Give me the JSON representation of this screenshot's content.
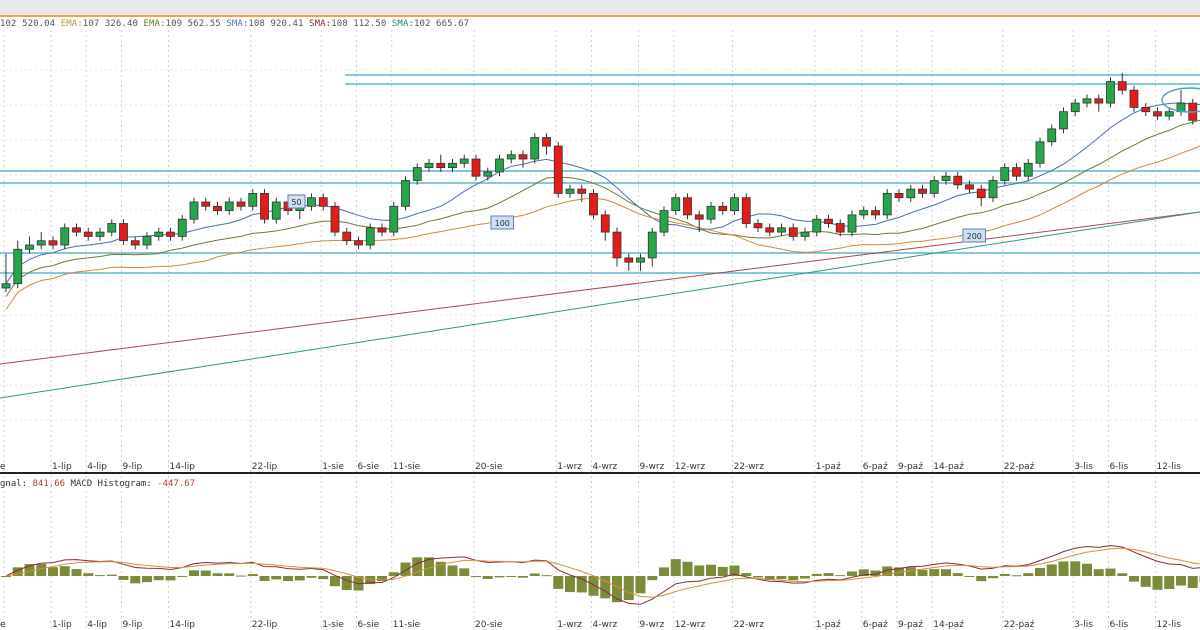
{
  "legend": {
    "items": [
      {
        "label": "",
        "value": "102 520.04",
        "color": "#555555"
      },
      {
        "label": "EMA:",
        "value": "107 326.40",
        "color": "#d08a3a"
      },
      {
        "label": "EMA:",
        "value": "109 562.55",
        "color": "#6b7d2e"
      },
      {
        "label": "SMA:",
        "value": "108 920.41",
        "color": "#4a6fb5"
      },
      {
        "label": "SMA:",
        "value": "108 112.50",
        "color": "#8a2a2a"
      },
      {
        "label": "SMA:",
        "value": "102 665.67",
        "color": "#1f8a6a"
      }
    ]
  },
  "macd_legend": {
    "signal_label": "gnal:",
    "signal_value": "841.66",
    "hist_label": "MACD Histogram:",
    "hist_value": "-447.67"
  },
  "ma_labels": [
    "50",
    "100",
    "200"
  ],
  "chart_data": {
    "type": "candlestick",
    "x_tick_labels": [
      "e",
      "1-lip",
      "4-lip",
      "9-lip",
      "14-lip",
      "22-lip",
      "1-sie",
      "6-sie",
      "11-sie",
      "20-sie",
      "1-wrz",
      "4-wrz",
      "9-wrz",
      "12-wrz",
      "22-wrz",
      "1-paź",
      "6-paź",
      "9-paź",
      "14-paź",
      "22-paź",
      "3-lis",
      "6-lis",
      "12-lis"
    ],
    "ohlc": [
      [
        100,
        101,
        108,
        99
      ],
      [
        101,
        109,
        111,
        100
      ],
      [
        109,
        110,
        112,
        108
      ],
      [
        110,
        111,
        113,
        109
      ],
      [
        111,
        110,
        112,
        109
      ],
      [
        110,
        114,
        115,
        109
      ],
      [
        114,
        113,
        115,
        112
      ],
      [
        113,
        112,
        114,
        111
      ],
      [
        112,
        113,
        114,
        111
      ],
      [
        113,
        115,
        116,
        112
      ],
      [
        115,
        111,
        116,
        110
      ],
      [
        111,
        110,
        112,
        109
      ],
      [
        110,
        112,
        113,
        109
      ],
      [
        112,
        113,
        114,
        111
      ],
      [
        113,
        112,
        114,
        111
      ],
      [
        112,
        116,
        117,
        111
      ],
      [
        116,
        120,
        121,
        115
      ],
      [
        120,
        119,
        121,
        118
      ],
      [
        119,
        118,
        120,
        117
      ],
      [
        118,
        120,
        121,
        117
      ],
      [
        120,
        119,
        121,
        118
      ],
      [
        119,
        122,
        123,
        118
      ],
      [
        122,
        116,
        123,
        115
      ],
      [
        116,
        120,
        121,
        115
      ],
      [
        120,
        118,
        121,
        117
      ],
      [
        118,
        119,
        120,
        116
      ],
      [
        119,
        121,
        122,
        118
      ],
      [
        121,
        119,
        122,
        118
      ],
      [
        119,
        113,
        120,
        112
      ],
      [
        113,
        111,
        114,
        110
      ],
      [
        111,
        110,
        112,
        109
      ],
      [
        110,
        114,
        115,
        109
      ],
      [
        114,
        113,
        115,
        112
      ],
      [
        113,
        119,
        120,
        112
      ],
      [
        119,
        125,
        126,
        118
      ],
      [
        125,
        128,
        129,
        124
      ],
      [
        128,
        129,
        130,
        127
      ],
      [
        129,
        128,
        131,
        127
      ],
      [
        128,
        129,
        130,
        127
      ],
      [
        129,
        130,
        131,
        128
      ],
      [
        130,
        126,
        131,
        125
      ],
      [
        126,
        127,
        128,
        125
      ],
      [
        127,
        130,
        131,
        126
      ],
      [
        130,
        131,
        132,
        129
      ],
      [
        131,
        130,
        132,
        128
      ],
      [
        130,
        135,
        136,
        129
      ],
      [
        135,
        133,
        136,
        131
      ],
      [
        133,
        122,
        134,
        121
      ],
      [
        122,
        123,
        124,
        121
      ],
      [
        123,
        122,
        124,
        120
      ],
      [
        122,
        117,
        123,
        116
      ],
      [
        117,
        113,
        118,
        111
      ],
      [
        113,
        107,
        114,
        105
      ],
      [
        107,
        106,
        108,
        104
      ],
      [
        106,
        107,
        108,
        104
      ],
      [
        107,
        113,
        114,
        105
      ],
      [
        113,
        118,
        119,
        112
      ],
      [
        118,
        121,
        122,
        117
      ],
      [
        121,
        117,
        122,
        116
      ],
      [
        117,
        116,
        118,
        113
      ],
      [
        116,
        119,
        120,
        115
      ],
      [
        119,
        118,
        120,
        117
      ],
      [
        118,
        121,
        122,
        117
      ],
      [
        121,
        115,
        122,
        114
      ],
      [
        115,
        114,
        116,
        113
      ],
      [
        114,
        113,
        115,
        112
      ],
      [
        113,
        114,
        115,
        112
      ],
      [
        114,
        112,
        115,
        111
      ],
      [
        112,
        113,
        114,
        111
      ],
      [
        113,
        116,
        117,
        112
      ],
      [
        116,
        115,
        117,
        114
      ],
      [
        115,
        113,
        116,
        112
      ],
      [
        113,
        117,
        118,
        112
      ],
      [
        117,
        118,
        119,
        116
      ],
      [
        118,
        117,
        119,
        116
      ],
      [
        117,
        122,
        123,
        116
      ],
      [
        122,
        121,
        123,
        120
      ],
      [
        121,
        123,
        124,
        120
      ],
      [
        123,
        122,
        124,
        121
      ],
      [
        122,
        125,
        126,
        121
      ],
      [
        125,
        126,
        127,
        124
      ],
      [
        126,
        124,
        127,
        123
      ],
      [
        124,
        123,
        125,
        122
      ],
      [
        123,
        121,
        124,
        119
      ],
      [
        121,
        125,
        126,
        120
      ],
      [
        125,
        128,
        129,
        124
      ],
      [
        128,
        126,
        129,
        125
      ],
      [
        126,
        129,
        130,
        125
      ],
      [
        129,
        134,
        135,
        128
      ],
      [
        134,
        137,
        138,
        133
      ],
      [
        137,
        141,
        142,
        136
      ],
      [
        141,
        143,
        144,
        140
      ],
      [
        143,
        144,
        145,
        142
      ],
      [
        144,
        143,
        145,
        141
      ],
      [
        143,
        148,
        149,
        142
      ],
      [
        148,
        146,
        150,
        145
      ],
      [
        146,
        142,
        147,
        141
      ],
      [
        142,
        141,
        143,
        140
      ],
      [
        141,
        140,
        142,
        139
      ],
      [
        140,
        141,
        142,
        139
      ],
      [
        141,
        143,
        146,
        140
      ],
      [
        143,
        139,
        144,
        138
      ],
      [
        139,
        144,
        145,
        138
      ],
      [
        144,
        145,
        147,
        143
      ],
      [
        145,
        142,
        148,
        141
      ],
      [
        142,
        138,
        143,
        137
      ]
    ]
  }
}
